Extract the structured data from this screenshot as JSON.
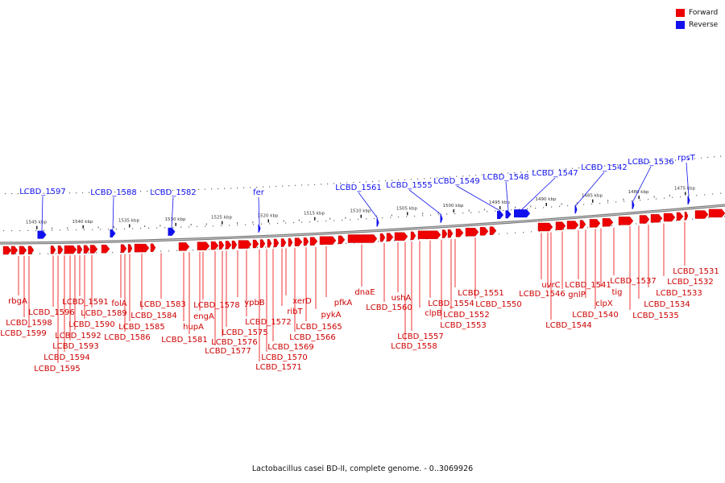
{
  "legend": {
    "forward_label": "Forward",
    "reverse_label": "Reverse",
    "forward_color": "#ee0000",
    "reverse_color": "#1111ee"
  },
  "caption": "Lactobacillus casei BD-II, complete genome. - 0..3069926",
  "scale_ticks": [
    "1545 kbp",
    "1540 kbp",
    "1535 kbp",
    "1530 kbp",
    "1525 kbp",
    "1520 kbp",
    "1515 kbp",
    "1510 kbp",
    "1505 kbp",
    "1500 kbp",
    "1495 kbp",
    "1490 kbp",
    "1485 kbp",
    "1480 kbp",
    "1475 kbp"
  ],
  "reverse_genes": [
    "LCBD_1597",
    "LCBD_1588",
    "LCBD_1582",
    "fer",
    "LCBD_1561",
    "LCBD_1555",
    "LCBD_1549",
    "LCBD_1548",
    "LCBD_1547",
    "LCBD_1542",
    "LCBD_1536",
    "rpsT"
  ],
  "forward_genes": [
    "rbgA",
    "LCBD_1598",
    "LCBD_1599",
    "LCBD_1596",
    "LCBD_1595",
    "LCBD_1594",
    "LCBD_1593",
    "LCBD_1592",
    "LCBD_1591",
    "LCBD_1590",
    "LCBD_1589",
    "folA",
    "LCBD_1586",
    "LCBD_1585",
    "LCBD_1584",
    "LCBD_1583",
    "hupA",
    "LCBD_1581",
    "engA",
    "LCBD_1578",
    "LCBD_1577",
    "LCBD_1576",
    "LCBD_1575",
    "ypbB",
    "LCBD_1572",
    "LCBD_1571",
    "LCBD_1570",
    "LCBD_1569",
    "ribT",
    "xerD",
    "LCBD_1566",
    "LCBD_1565",
    "pykA",
    "pfkA",
    "dnaE",
    "ushA",
    "LCBD_1560",
    "clpB",
    "LCBD_1558",
    "LCBD_1557",
    "LCBD_1554",
    "LCBD_1553",
    "LCBD_1552",
    "LCBD_1551",
    "LCBD_1550",
    "uvrC",
    "LCBD_1546",
    "gnlP",
    "LCBD_1544",
    "LCBD_1541",
    "tig",
    "clpX",
    "LCBD_1540",
    "LCBD_1537",
    "LCBD_1535",
    "LCBD_1534",
    "LCBD_1533",
    "LCBD_1532",
    "LCBD_1531"
  ]
}
